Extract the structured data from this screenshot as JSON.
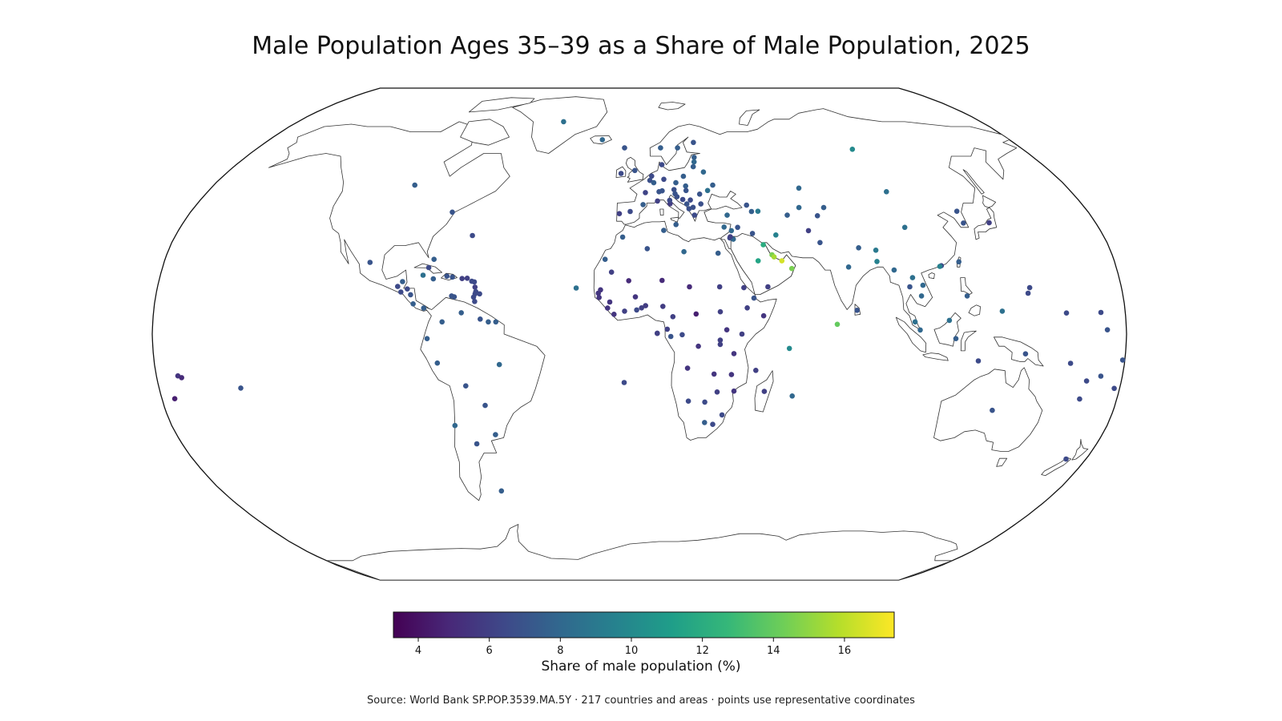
{
  "title": "Male Population Ages 35–39 as a Share of Male Population, 2025",
  "colorbar": {
    "label": "Share of male population (%)",
    "min": 3.3,
    "max": 17.4,
    "ticks": [
      "4",
      "6",
      "8",
      "10",
      "12",
      "14",
      "16"
    ],
    "colormap": "viridis",
    "stops": [
      "#440154",
      "#482878",
      "#3e4989",
      "#31688e",
      "#26828e",
      "#1f9e89",
      "#35b779",
      "#6ece58",
      "#b5de2b",
      "#fde725"
    ]
  },
  "source": "Source: World Bank SP.POP.3539.MA.5Y · 217 countries and areas · points use representative coordinates",
  "chart_data": {
    "type": "scatter",
    "projection": "robinson",
    "values_unit": "percent",
    "points": [
      {
        "lon": -40,
        "lat": 72,
        "v": 8.5
      },
      {
        "lon": -18,
        "lat": 65,
        "v": 8.0
      },
      {
        "lon": -7,
        "lat": 62,
        "v": 7.0
      },
      {
        "lon": -2,
        "lat": 54,
        "v": 7.0
      },
      {
        "lon": -8,
        "lat": 53,
        "v": 6.5
      },
      {
        "lon": 10,
        "lat": 62,
        "v": 7.5
      },
      {
        "lon": 18,
        "lat": 62,
        "v": 7.5
      },
      {
        "lon": 26,
        "lat": 64,
        "v": 7.0
      },
      {
        "lon": 25,
        "lat": 58.6,
        "v": 7.5
      },
      {
        "lon": 24.6,
        "lat": 57,
        "v": 8.0
      },
      {
        "lon": 23.9,
        "lat": 55.3,
        "v": 7.5
      },
      {
        "lon": 10,
        "lat": 56,
        "v": 6.5
      },
      {
        "lon": 28,
        "lat": 53.5,
        "v": 8.0
      },
      {
        "lon": 19,
        "lat": 52,
        "v": 7.5
      },
      {
        "lon": 10.5,
        "lat": 51,
        "v": 6.5
      },
      {
        "lon": 5.3,
        "lat": 52.1,
        "v": 6.5
      },
      {
        "lon": 4.5,
        "lat": 50.6,
        "v": 6.8
      },
      {
        "lon": 6.1,
        "lat": 49.8,
        "v": 7.5
      },
      {
        "lon": 2.5,
        "lat": 46.5,
        "v": 6.2
      },
      {
        "lon": 8.2,
        "lat": 46.8,
        "v": 7.0
      },
      {
        "lon": 14.5,
        "lat": 47.5,
        "v": 6.8
      },
      {
        "lon": 15.5,
        "lat": 49.8,
        "v": 7.5
      },
      {
        "lon": 19.5,
        "lat": 48.7,
        "v": 7.5
      },
      {
        "lon": 19.5,
        "lat": 47.2,
        "v": 7.0
      },
      {
        "lon": 14.8,
        "lat": 46.1,
        "v": 7.0
      },
      {
        "lon": 15.5,
        "lat": 45.1,
        "v": 6.8
      },
      {
        "lon": 17.8,
        "lat": 44.2,
        "v": 6.5
      },
      {
        "lon": 20.9,
        "lat": 44.0,
        "v": 6.5
      },
      {
        "lon": 19.3,
        "lat": 42.7,
        "v": 7.0
      },
      {
        "lon": 20.0,
        "lat": 41.1,
        "v": 6.8
      },
      {
        "lon": 21.7,
        "lat": 41.6,
        "v": 6.8
      },
      {
        "lon": 25.0,
        "lat": 42.7,
        "v": 6.8
      },
      {
        "lon": 25.0,
        "lat": 46.0,
        "v": 7.0
      },
      {
        "lon": 28.5,
        "lat": 47.2,
        "v": 8.5
      },
      {
        "lon": 31.0,
        "lat": 49.0,
        "v": 7.5
      },
      {
        "lon": 22.0,
        "lat": 39.0,
        "v": 6.5
      },
      {
        "lon": 12.5,
        "lat": 42.8,
        "v": 5.8
      },
      {
        "lon": 12.4,
        "lat": 43.9,
        "v": 6.5
      },
      {
        "lon": 14.4,
        "lat": 35.9,
        "v": 7.5
      },
      {
        "lon": -3.7,
        "lat": 40.2,
        "v": 6.5
      },
      {
        "lon": -8.0,
        "lat": 39.5,
        "v": 6.0
      },
      {
        "lon": 1.5,
        "lat": 42.5,
        "v": 7.5
      },
      {
        "lon": 9.5,
        "lat": 47.1,
        "v": 7.0
      },
      {
        "lon": 7.4,
        "lat": 43.7,
        "v": 6.0
      },
      {
        "lon": 33.2,
        "lat": 35.1,
        "v": 8.0
      },
      {
        "lon": 35.0,
        "lat": 39.0,
        "v": 8.0
      },
      {
        "lon": 43.5,
        "lat": 42.3,
        "v": 7.0
      },
      {
        "lon": 45.0,
        "lat": 40.2,
        "v": 7.5
      },
      {
        "lon": 47.6,
        "lat": 40.3,
        "v": 9.0
      },
      {
        "lon": 100.0,
        "lat": 61.5,
        "v": 10.0
      },
      {
        "lon": 67.0,
        "lat": 48.0,
        "v": 8.0
      },
      {
        "lon": 64.5,
        "lat": 41.5,
        "v": 8.0
      },
      {
        "lon": 59.0,
        "lat": 39.0,
        "v": 7.5
      },
      {
        "lon": 74.5,
        "lat": 41.5,
        "v": 7.5
      },
      {
        "lon": 71.0,
        "lat": 38.8,
        "v": 7.0
      },
      {
        "lon": 66.0,
        "lat": 33.9,
        "v": 6.0
      },
      {
        "lon": 69.5,
        "lat": 30.0,
        "v": 7.0
      },
      {
        "lon": 79.0,
        "lat": 22.0,
        "v": 8.0
      },
      {
        "lon": 84.0,
        "lat": 28.3,
        "v": 7.5
      },
      {
        "lon": 90.4,
        "lat": 27.5,
        "v": 9.0
      },
      {
        "lon": 90.0,
        "lat": 23.8,
        "v": 9.5
      },
      {
        "lon": 80.7,
        "lat": 7.8,
        "v": 7.0
      },
      {
        "lon": 73.2,
        "lat": 3.2,
        "v": 14.0
      },
      {
        "lon": 103.0,
        "lat": 46.8,
        "v": 8.5
      },
      {
        "lon": 104.0,
        "lat": 35.0,
        "v": 8.5
      },
      {
        "lon": 127.5,
        "lat": 40.3,
        "v": 7.0
      },
      {
        "lon": 127.8,
        "lat": 36.4,
        "v": 7.0
      },
      {
        "lon": 138.0,
        "lat": 36.5,
        "v": 6.0
      },
      {
        "lon": 121.0,
        "lat": 23.7,
        "v": 7.5
      },
      {
        "lon": 114.1,
        "lat": 22.4,
        "v": 6.5
      },
      {
        "lon": 113.5,
        "lat": 22.2,
        "v": 9.5
      },
      {
        "lon": 96.0,
        "lat": 21.0,
        "v": 8.0
      },
      {
        "lon": 102.5,
        "lat": 18.5,
        "v": 8.5
      },
      {
        "lon": 101.0,
        "lat": 15.5,
        "v": 7.0
      },
      {
        "lon": 105.0,
        "lat": 12.5,
        "v": 8.0
      },
      {
        "lon": 106.0,
        "lat": 16.0,
        "v": 8.0
      },
      {
        "lon": 122.0,
        "lat": 12.5,
        "v": 7.5
      },
      {
        "lon": 102.0,
        "lat": 4.0,
        "v": 8.5
      },
      {
        "lon": 103.8,
        "lat": 1.35,
        "v": 8.0
      },
      {
        "lon": 114.7,
        "lat": 4.5,
        "v": 8.5
      },
      {
        "lon": 117.0,
        "lat": -1.5,
        "v": 7.5
      },
      {
        "lon": 125.7,
        "lat": -8.8,
        "v": 6.5
      },
      {
        "lon": 143.0,
        "lat": -6.5,
        "v": 7.0
      },
      {
        "lon": 134.5,
        "lat": 7.5,
        "v": 8.5
      },
      {
        "lon": 144.8,
        "lat": 13.4,
        "v": 6.5
      },
      {
        "lon": 145.7,
        "lat": 15.2,
        "v": 6.5
      },
      {
        "lon": 158.2,
        "lat": 6.9,
        "v": 6.5
      },
      {
        "lon": 171.0,
        "lat": 7.1,
        "v": 6.5
      },
      {
        "lon": 173.0,
        "lat": 1.4,
        "v": 7.0
      },
      {
        "lon": 160.0,
        "lat": -9.6,
        "v": 6.5
      },
      {
        "lon": 167.0,
        "lat": -15.4,
        "v": 6.5
      },
      {
        "lon": 178.0,
        "lat": -17.8,
        "v": 6.5
      },
      {
        "lon": 166.0,
        "lat": -21.3,
        "v": 6.5
      },
      {
        "lon": 172.0,
        "lat": -13.8,
        "v": 7.0
      },
      {
        "lon": -172.0,
        "lat": -13.7,
        "v": 5.5
      },
      {
        "lon": -170.7,
        "lat": -14.3,
        "v": 5.0
      },
      {
        "lon": -175.2,
        "lat": -21.2,
        "v": 4.5
      },
      {
        "lon": -149.4,
        "lat": -17.7,
        "v": 7.0
      },
      {
        "lon": 179.2,
        "lat": -8.5,
        "v": 7.0
      },
      {
        "lon": 134.0,
        "lat": -25.0,
        "v": 7.0
      },
      {
        "lon": 172.0,
        "lat": -41.0,
        "v": 6.5
      },
      {
        "lon": 44.0,
        "lat": 33.0,
        "v": 7.0
      },
      {
        "lon": 38.5,
        "lat": 35.0,
        "v": 7.0
      },
      {
        "lon": 35.9,
        "lat": 33.9,
        "v": 8.0
      },
      {
        "lon": 35.0,
        "lat": 31.5,
        "v": 6.5
      },
      {
        "lon": 36.3,
        "lat": 31.1,
        "v": 8.0
      },
      {
        "lon": 35.2,
        "lat": 31.9,
        "v": 6.0
      },
      {
        "lon": 45.0,
        "lat": 24.0,
        "v": 11.5
      },
      {
        "lon": 47.6,
        "lat": 29.3,
        "v": 12.0
      },
      {
        "lon": 50.5,
        "lat": 26.0,
        "v": 14.5
      },
      {
        "lon": 51.2,
        "lat": 25.3,
        "v": 15.5
      },
      {
        "lon": 54.0,
        "lat": 24.0,
        "v": 16.5
      },
      {
        "lon": 57.5,
        "lat": 21.5,
        "v": 14.5
      },
      {
        "lon": 48.0,
        "lat": 15.5,
        "v": 6.0
      },
      {
        "lon": 53.0,
        "lat": 32.5,
        "v": 9.5
      },
      {
        "lon": 3.0,
        "lat": 28.0,
        "v": 7.0
      },
      {
        "lon": 9.5,
        "lat": 34.0,
        "v": 7.5
      },
      {
        "lon": 17.0,
        "lat": 27.0,
        "v": 8.0
      },
      {
        "lon": 30.0,
        "lat": 26.5,
        "v": 7.5
      },
      {
        "lon": -6.5,
        "lat": 31.8,
        "v": 7.5
      },
      {
        "lon": -13.0,
        "lat": 24.5,
        "v": 7.5
      },
      {
        "lon": -10.5,
        "lat": 20.3,
        "v": 6.0
      },
      {
        "lon": -4.0,
        "lat": 17.5,
        "v": 5.0
      },
      {
        "lon": 8.5,
        "lat": 17.6,
        "v": 5.0
      },
      {
        "lon": 18.7,
        "lat": 15.5,
        "v": 5.0
      },
      {
        "lon": 30.0,
        "lat": 15.5,
        "v": 6.0
      },
      {
        "lon": 39.0,
        "lat": 15.2,
        "v": 6.0
      },
      {
        "lon": 42.6,
        "lat": 11.8,
        "v": 7.0
      },
      {
        "lon": 40.0,
        "lat": 8.6,
        "v": 6.0
      },
      {
        "lon": 46.0,
        "lat": 6.0,
        "v": 5.5
      },
      {
        "lon": -14.5,
        "lat": 14.5,
        "v": 5.5
      },
      {
        "lon": -15.3,
        "lat": 13.4,
        "v": 5.5
      },
      {
        "lon": -15.0,
        "lat": 12.0,
        "v": 5.5
      },
      {
        "lon": -11.0,
        "lat": 10.5,
        "v": 5.5
      },
      {
        "lon": -11.8,
        "lat": 8.5,
        "v": 5.5
      },
      {
        "lon": -9.4,
        "lat": 6.5,
        "v": 5.5
      },
      {
        "lon": -5.5,
        "lat": 7.5,
        "v": 6.0
      },
      {
        "lon": -1.5,
        "lat": 12.2,
        "v": 5.5
      },
      {
        "lon": -1.0,
        "lat": 7.9,
        "v": 6.5
      },
      {
        "lon": 0.8,
        "lat": 8.6,
        "v": 6.0
      },
      {
        "lon": 2.3,
        "lat": 9.3,
        "v": 5.8
      },
      {
        "lon": 8.7,
        "lat": 9.1,
        "v": 5.8
      },
      {
        "lon": 12.4,
        "lat": 5.7,
        "v": 6.0
      },
      {
        "lon": 21.0,
        "lat": 6.6,
        "v": 4.5
      },
      {
        "lon": 30.0,
        "lat": 7.3,
        "v": 6.0
      },
      {
        "lon": 10.3,
        "lat": 1.6,
        "v": 6.0
      },
      {
        "lon": 11.6,
        "lat": -0.8,
        "v": 7.0
      },
      {
        "lon": 15.8,
        "lat": -0.2,
        "v": 6.5
      },
      {
        "lon": 21.8,
        "lat": -4.0,
        "v": 5.5
      },
      {
        "lon": 6.6,
        "lat": 0.2,
        "v": 6.0
      },
      {
        "lon": 32.3,
        "lat": 1.4,
        "v": 5.5
      },
      {
        "lon": 37.9,
        "lat": 0.0,
        "v": 6.0
      },
      {
        "lon": 29.9,
        "lat": -2.0,
        "v": 6.0
      },
      {
        "lon": 29.9,
        "lat": -3.4,
        "v": 6.0
      },
      {
        "lon": 35.0,
        "lat": -6.4,
        "v": 5.5
      },
      {
        "lon": 17.9,
        "lat": -11.2,
        "v": 5.5
      },
      {
        "lon": 27.8,
        "lat": -13.1,
        "v": 5.5
      },
      {
        "lon": 34.3,
        "lat": -13.3,
        "v": 5.5
      },
      {
        "lon": 35.5,
        "lat": -18.7,
        "v": 5.5
      },
      {
        "lon": 29.2,
        "lat": -19.0,
        "v": 6.0
      },
      {
        "lon": 18.5,
        "lat": -22.0,
        "v": 6.5
      },
      {
        "lon": 24.7,
        "lat": -22.3,
        "v": 6.5
      },
      {
        "lon": 25.0,
        "lat": -29.0,
        "v": 7.5
      },
      {
        "lon": 28.2,
        "lat": -29.6,
        "v": 6.5
      },
      {
        "lon": 31.5,
        "lat": -26.5,
        "v": 6.5
      },
      {
        "lon": 46.9,
        "lat": -18.8,
        "v": 6.0
      },
      {
        "lon": 43.3,
        "lat": -11.9,
        "v": 6.0
      },
      {
        "lon": 57.5,
        "lat": -20.3,
        "v": 8.0
      },
      {
        "lon": 55.5,
        "lat": -4.7,
        "v": 10.0
      },
      {
        "lon": -23.6,
        "lat": 15.1,
        "v": 8.5
      },
      {
        "lon": 6.6,
        "lat": 0.3,
        "v": 6.0
      },
      {
        "lon": -5.7,
        "lat": -15.9,
        "v": 6.5
      },
      {
        "lon": -75.0,
        "lat": 40.0,
        "v": 7.0
      },
      {
        "lon": -95.0,
        "lat": 49.0,
        "v": 7.5
      },
      {
        "lon": -64.8,
        "lat": 32.3,
        "v": 6.5
      },
      {
        "lon": -102.0,
        "lat": 23.5,
        "v": 7.0
      },
      {
        "lon": -77.9,
        "lat": 24.5,
        "v": 7.5
      },
      {
        "lon": -79.5,
        "lat": 21.8,
        "v": 6.5
      },
      {
        "lon": -72.3,
        "lat": 19.0,
        "v": 7.0
      },
      {
        "lon": -70.2,
        "lat": 18.7,
        "v": 7.0
      },
      {
        "lon": -77.3,
        "lat": 18.1,
        "v": 7.5
      },
      {
        "lon": -66.5,
        "lat": 18.2,
        "v": 6.0
      },
      {
        "lon": -64.6,
        "lat": 18.3,
        "v": 6.0
      },
      {
        "lon": -62.8,
        "lat": 17.3,
        "v": 6.5
      },
      {
        "lon": -61.8,
        "lat": 17.1,
        "v": 6.5
      },
      {
        "lon": -61.4,
        "lat": 15.4,
        "v": 6.0
      },
      {
        "lon": -61.0,
        "lat": 13.9,
        "v": 6.5
      },
      {
        "lon": -61.2,
        "lat": 13.2,
        "v": 6.5
      },
      {
        "lon": -59.5,
        "lat": 13.2,
        "v": 6.5
      },
      {
        "lon": -61.7,
        "lat": 12.1,
        "v": 6.5
      },
      {
        "lon": -61.2,
        "lat": 10.7,
        "v": 6.5
      },
      {
        "lon": -69.9,
        "lat": 12.5,
        "v": 7.0
      },
      {
        "lon": -68.9,
        "lat": 12.2,
        "v": 7.0
      },
      {
        "lon": -81.3,
        "lat": 19.3,
        "v": 8.5
      },
      {
        "lon": -88.7,
        "lat": 17.2,
        "v": 7.5
      },
      {
        "lon": -90.3,
        "lat": 15.6,
        "v": 6.5
      },
      {
        "lon": -88.9,
        "lat": 13.8,
        "v": 6.5
      },
      {
        "lon": -86.6,
        "lat": 14.8,
        "v": 6.5
      },
      {
        "lon": -85.2,
        "lat": 12.9,
        "v": 7.0
      },
      {
        "lon": -84.0,
        "lat": 9.9,
        "v": 7.5
      },
      {
        "lon": -80.0,
        "lat": 8.5,
        "v": 7.5
      },
      {
        "lon": -66.0,
        "lat": 7.0,
        "v": 7.5
      },
      {
        "lon": -73.0,
        "lat": 4.0,
        "v": 7.5
      },
      {
        "lon": -78.5,
        "lat": -1.5,
        "v": 7.5
      },
      {
        "lon": -75.0,
        "lat": -9.5,
        "v": 7.5
      },
      {
        "lon": -58.9,
        "lat": 4.9,
        "v": 7.0
      },
      {
        "lon": -55.9,
        "lat": 4.0,
        "v": 7.5
      },
      {
        "lon": -53.1,
        "lat": 4.0,
        "v": 7.5
      },
      {
        "lon": -52.0,
        "lat": -10.0,
        "v": 8.0
      },
      {
        "lon": -65.0,
        "lat": -17.0,
        "v": 7.0
      },
      {
        "lon": -58.4,
        "lat": -23.4,
        "v": 7.0
      },
      {
        "lon": -71.0,
        "lat": -30.0,
        "v": 8.0
      },
      {
        "lon": -64.0,
        "lat": -36.0,
        "v": 7.0
      },
      {
        "lon": -56.0,
        "lat": -33.0,
        "v": 7.5
      },
      {
        "lon": -59.5,
        "lat": -51.7,
        "v": 7.5
      }
    ]
  }
}
